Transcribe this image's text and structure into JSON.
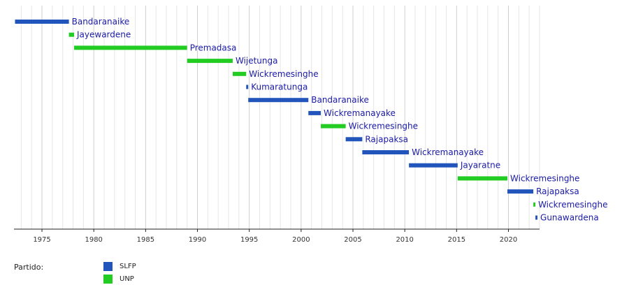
{
  "colors": {
    "SLFP": "#2255bb",
    "UNP": "#22cc22",
    "grid_minor": "#e6e6e6",
    "grid_major": "#cfcfcf",
    "axis": "#222222",
    "label": "#1a1aa6"
  },
  "legend": {
    "title": "Partido:",
    "items": [
      {
        "name": "SLFP",
        "color": "#2255bb"
      },
      {
        "name": "UNP",
        "color": "#22cc22"
      }
    ]
  },
  "chart_data": {
    "type": "gantt",
    "xlim": [
      1972.3,
      2023.0
    ],
    "x_ticks": [
      1975,
      1980,
      1985,
      1990,
      1995,
      2000,
      2005,
      2010,
      2015,
      2020
    ],
    "grid": true,
    "series": [
      {
        "name": "SLFP",
        "color": "#2255bb"
      },
      {
        "name": "UNP",
        "color": "#22cc22"
      }
    ],
    "bars": [
      {
        "label": "Bandaranaike",
        "start": 1972.4,
        "end": 1977.6,
        "party": "SLFP"
      },
      {
        "label": "Jayewardene",
        "start": 1977.6,
        "end": 1978.1,
        "party": "UNP"
      },
      {
        "label": "Premadasa",
        "start": 1978.1,
        "end": 1989.0,
        "party": "UNP"
      },
      {
        "label": "Wijetunga",
        "start": 1989.0,
        "end": 1993.4,
        "party": "UNP"
      },
      {
        "label": "Wickremesinghe",
        "start": 1993.4,
        "end": 1994.7,
        "party": "UNP"
      },
      {
        "label": "Kumaratunga",
        "start": 1994.7,
        "end": 1994.9,
        "party": "SLFP"
      },
      {
        "label": "Bandaranaike",
        "start": 1994.9,
        "end": 2000.7,
        "party": "SLFP"
      },
      {
        "label": "Wickremanayake",
        "start": 2000.7,
        "end": 2001.9,
        "party": "SLFP"
      },
      {
        "label": "Wickremesinghe",
        "start": 2001.9,
        "end": 2004.3,
        "party": "UNP"
      },
      {
        "label": "Rajapaksa",
        "start": 2004.3,
        "end": 2005.9,
        "party": "SLFP"
      },
      {
        "label": "Wickremanayake",
        "start": 2005.9,
        "end": 2010.4,
        "party": "SLFP"
      },
      {
        "label": "Jayaratne",
        "start": 2010.4,
        "end": 2015.1,
        "party": "SLFP"
      },
      {
        "label": "Wickremesinghe",
        "start": 2015.1,
        "end": 2019.9,
        "party": "UNP"
      },
      {
        "label": "Rajapaksa",
        "start": 2019.9,
        "end": 2022.4,
        "party": "SLFP"
      },
      {
        "label": "Wickremesinghe",
        "start": 2022.4,
        "end": 2022.6,
        "party": "UNP"
      },
      {
        "label": "Gunawardena",
        "start": 2022.6,
        "end": 2022.8,
        "party": "SLFP"
      }
    ]
  }
}
